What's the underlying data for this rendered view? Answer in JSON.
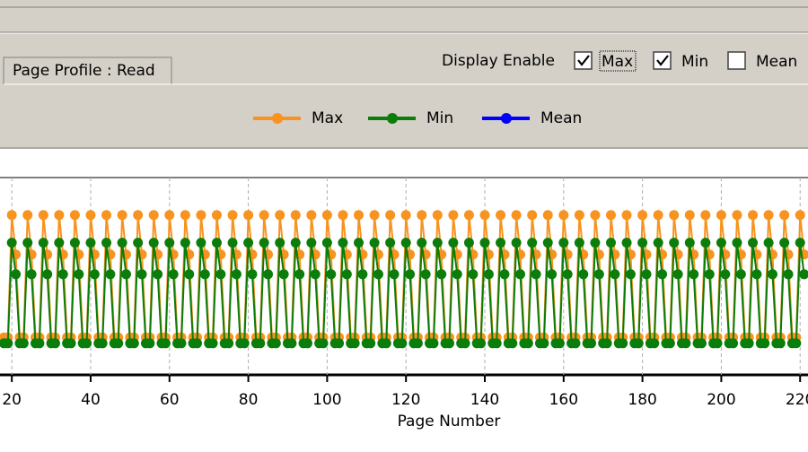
{
  "window": {
    "tab": "Page Profile : Read",
    "display_enable": {
      "label": "Display Enable",
      "options": [
        {
          "label": "Max",
          "checked": true
        },
        {
          "label": "Min",
          "checked": true
        },
        {
          "label": "Mean",
          "checked": false
        }
      ]
    }
  },
  "chart_data": {
    "type": "line",
    "xlabel": "Page Number",
    "x": [
      18,
      19,
      20,
      21,
      22,
      23,
      24,
      25,
      26,
      27,
      28,
      29,
      30,
      31,
      32,
      33,
      34,
      35,
      36,
      37,
      38,
      39,
      40,
      41,
      42,
      43,
      44,
      45,
      46,
      47,
      48,
      49,
      50,
      51,
      52,
      53,
      54,
      55,
      56,
      57,
      58,
      59,
      60,
      61,
      62,
      63,
      64,
      65,
      66,
      67,
      68,
      69,
      70,
      71,
      72,
      73,
      74,
      75,
      76,
      77,
      78,
      79,
      80,
      81,
      82,
      83,
      84,
      85,
      86,
      87,
      88,
      89,
      90,
      91,
      92,
      93,
      94,
      95,
      96,
      97,
      98,
      99,
      100,
      101,
      102,
      103,
      104,
      105,
      106,
      107,
      108,
      109,
      110,
      111,
      112,
      113,
      114,
      115,
      116,
      117,
      118,
      119,
      120,
      121,
      122,
      123,
      124,
      125,
      126,
      127,
      128,
      129,
      130,
      131,
      132,
      133,
      134,
      135,
      136,
      137,
      138,
      139,
      140,
      141,
      142,
      143,
      144,
      145,
      146,
      147,
      148,
      149,
      150,
      151,
      152,
      153,
      154,
      155,
      156,
      157,
      158,
      159,
      160,
      161,
      162,
      163,
      164,
      165,
      166,
      167,
      168,
      169,
      170,
      171,
      172,
      173,
      174,
      175,
      176,
      177,
      178,
      179,
      180,
      181,
      182,
      183,
      184,
      185,
      186,
      187,
      188,
      189,
      190,
      191,
      192,
      193,
      194,
      195,
      196,
      197,
      198,
      199,
      200,
      201,
      202,
      203,
      204,
      205,
      206,
      207,
      208,
      209,
      210,
      211,
      212,
      213,
      214,
      215,
      216,
      217,
      218,
      219,
      220,
      221
    ],
    "series": [
      {
        "name": "Max",
        "color": "#f7931e",
        "values": [
          19,
          19,
          81,
          61,
          19,
          19,
          81,
          61,
          19,
          19,
          81,
          61,
          19,
          19,
          81,
          61,
          19,
          19,
          81,
          61,
          19,
          19,
          81,
          61,
          19,
          19,
          81,
          61,
          19,
          19,
          81,
          61,
          19,
          19,
          81,
          61,
          19,
          19,
          81,
          61,
          19,
          19,
          81,
          61,
          19,
          19,
          81,
          61,
          19,
          19,
          81,
          61,
          19,
          19,
          81,
          61,
          19,
          19,
          81,
          61,
          19,
          19,
          81,
          61,
          19,
          19,
          81,
          61,
          19,
          19,
          81,
          61,
          19,
          19,
          81,
          61,
          19,
          19,
          81,
          61,
          19,
          19,
          81,
          61,
          19,
          19,
          81,
          61,
          19,
          19,
          81,
          61,
          19,
          19,
          81,
          61,
          19,
          19,
          81,
          61,
          19,
          19,
          81,
          61,
          19,
          19,
          81,
          61,
          19,
          19,
          81,
          61,
          19,
          19,
          81,
          61,
          19,
          19,
          81,
          61,
          19,
          19,
          81,
          61,
          19,
          19,
          81,
          61,
          19,
          19,
          81,
          61,
          19,
          19,
          81,
          61,
          19,
          19,
          81,
          61,
          19,
          19,
          81,
          61,
          19,
          19,
          81,
          61,
          19,
          19,
          81,
          61,
          19,
          19,
          81,
          61,
          19,
          19,
          81,
          61,
          19,
          19,
          81,
          61,
          19,
          19,
          81,
          61,
          19,
          19,
          81,
          61,
          19,
          19,
          81,
          61,
          19,
          19,
          81,
          61,
          19,
          19,
          81,
          61,
          19,
          19,
          81,
          61,
          19,
          19,
          81,
          61,
          19,
          19,
          81,
          61,
          19,
          19,
          81,
          61,
          19,
          19,
          81,
          61
        ]
      },
      {
        "name": "Min",
        "color": "#0a7d0a",
        "values": [
          16,
          16,
          67,
          51,
          16,
          16,
          67,
          51,
          16,
          16,
          67,
          51,
          16,
          16,
          67,
          51,
          16,
          16,
          67,
          51,
          16,
          16,
          67,
          51,
          16,
          16,
          67,
          51,
          16,
          16,
          67,
          51,
          16,
          16,
          67,
          51,
          16,
          16,
          67,
          51,
          16,
          16,
          67,
          51,
          16,
          16,
          67,
          51,
          16,
          16,
          67,
          51,
          16,
          16,
          67,
          51,
          16,
          16,
          67,
          51,
          16,
          16,
          67,
          51,
          16,
          16,
          67,
          51,
          16,
          16,
          67,
          51,
          16,
          16,
          67,
          51,
          16,
          16,
          67,
          51,
          16,
          16,
          67,
          51,
          16,
          16,
          67,
          51,
          16,
          16,
          67,
          51,
          16,
          16,
          67,
          51,
          16,
          16,
          67,
          51,
          16,
          16,
          67,
          51,
          16,
          16,
          67,
          51,
          16,
          16,
          67,
          51,
          16,
          16,
          67,
          51,
          16,
          16,
          67,
          51,
          16,
          16,
          67,
          51,
          16,
          16,
          67,
          51,
          16,
          16,
          67,
          51,
          16,
          16,
          67,
          51,
          16,
          16,
          67,
          51,
          16,
          16,
          67,
          51,
          16,
          16,
          67,
          51,
          16,
          16,
          67,
          51,
          16,
          16,
          67,
          51,
          16,
          16,
          67,
          51,
          16,
          16,
          67,
          51,
          16,
          16,
          67,
          51,
          16,
          16,
          67,
          51,
          16,
          16,
          67,
          51,
          16,
          16,
          67,
          51,
          16,
          16,
          67,
          51,
          16,
          16,
          67,
          51,
          16,
          16,
          67,
          51,
          16,
          16,
          67,
          51,
          16,
          16,
          67,
          51,
          16,
          16,
          67,
          51
        ]
      },
      {
        "name": "Mean",
        "color": "#0000ff",
        "values": [
          null,
          null,
          null,
          null,
          null,
          null,
          null,
          null,
          null,
          null,
          null,
          null,
          null,
          null,
          null,
          null,
          null,
          null,
          null,
          null,
          null,
          null,
          null,
          null,
          null,
          null,
          null,
          null,
          null,
          null,
          null,
          null,
          null,
          null,
          null,
          null,
          null,
          null,
          null,
          null,
          null,
          null,
          null,
          null,
          null,
          null,
          null,
          null,
          null,
          null,
          null,
          null,
          null,
          null,
          null,
          null,
          null,
          null,
          null,
          null,
          null,
          null,
          null,
          null,
          null,
          null,
          null,
          null,
          null,
          null,
          null,
          null,
          null,
          null,
          null,
          null,
          null,
          null,
          null,
          null,
          null,
          null,
          null,
          null,
          null,
          null,
          null,
          null,
          null,
          null,
          null,
          null,
          null,
          null,
          null,
          null,
          null,
          null,
          null,
          null,
          null,
          null,
          null,
          null,
          null,
          null,
          null,
          null,
          null,
          null,
          null,
          null,
          null,
          null,
          null,
          null,
          null,
          null,
          null,
          null,
          null,
          null,
          null,
          null,
          null,
          null,
          null,
          null,
          null,
          null,
          null,
          null,
          null,
          null,
          null,
          null,
          null,
          null,
          null,
          null,
          null,
          null,
          null,
          null,
          null,
          null,
          null,
          null,
          null,
          null,
          null,
          null,
          null,
          null,
          null,
          null,
          null,
          null,
          null,
          null,
          null,
          null,
          null,
          null,
          null,
          null,
          null,
          null,
          null,
          null,
          null,
          null,
          null,
          null,
          null,
          null,
          null,
          null,
          null,
          null,
          null,
          null,
          null,
          null,
          null,
          null,
          null,
          null,
          null,
          null,
          null,
          null,
          null,
          null,
          null,
          null,
          null,
          null,
          null,
          null,
          null,
          null,
          null,
          null
        ]
      }
    ],
    "xlim": [
      17,
      222
    ],
    "xticks": [
      20,
      40,
      60,
      80,
      100,
      120,
      140,
      160,
      180,
      200,
      220
    ],
    "ylim": [
      0,
      100
    ],
    "grid": true
  }
}
